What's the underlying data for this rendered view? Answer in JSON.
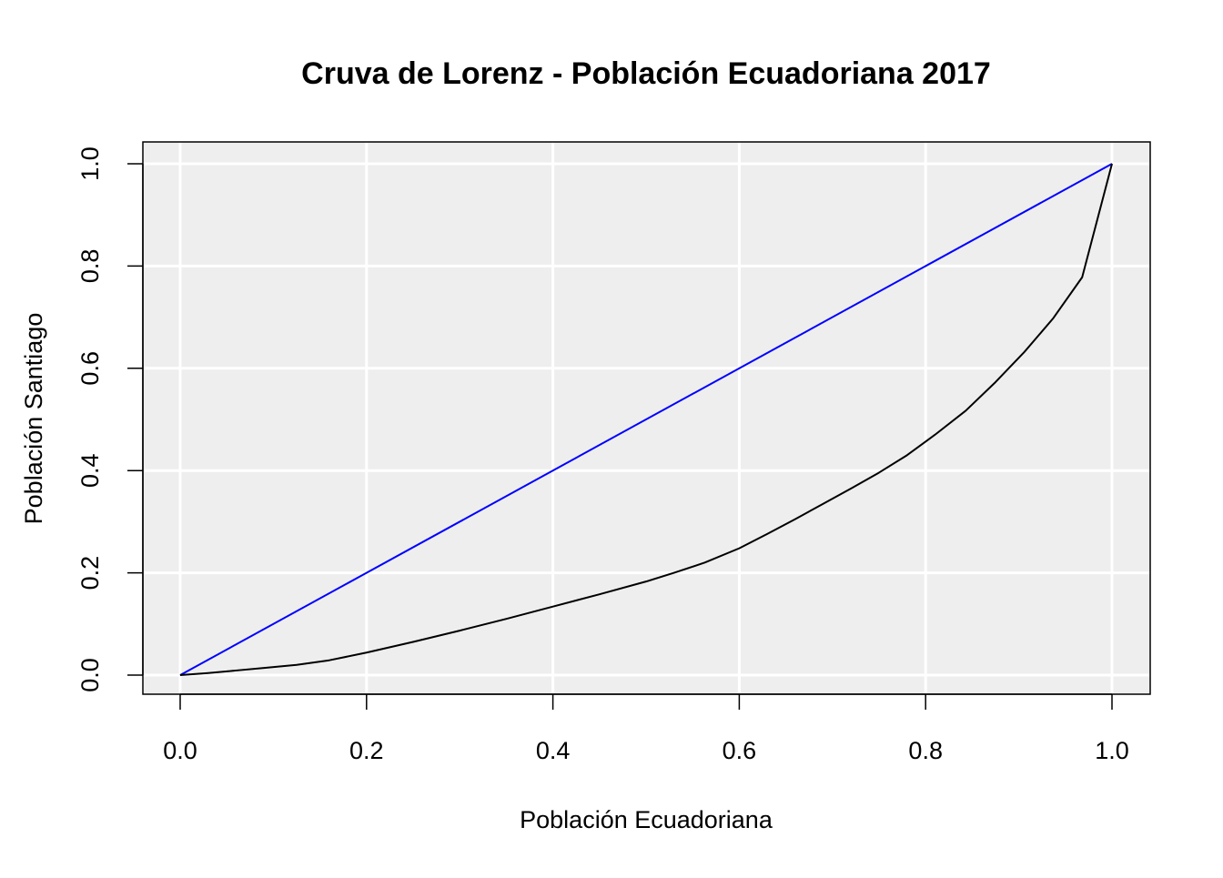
{
  "chart_data": {
    "type": "line",
    "title": "Cruva de Lorenz - Población Ecuadoriana 2017",
    "xlabel": "Población Ecuadoriana",
    "ylabel": "Población Santiago",
    "xlim": [
      0,
      1
    ],
    "ylim": [
      0,
      1
    ],
    "x_ticks": [
      "0.0",
      "0.2",
      "0.4",
      "0.6",
      "0.8",
      "1.0"
    ],
    "y_ticks": [
      "0.0",
      "0.2",
      "0.4",
      "0.6",
      "0.8",
      "1.0"
    ],
    "grid": true,
    "panel_background": "#EEEEEE",
    "grid_color": "#FFFFFF",
    "series": [
      {
        "color": "#0000FF",
        "x": [
          0,
          1
        ],
        "y": [
          0,
          1
        ]
      },
      {
        "color": "#000000",
        "x": [
          0,
          0.03,
          0.06,
          0.09,
          0.125,
          0.16,
          0.2,
          0.25,
          0.3,
          0.35,
          0.4,
          0.45,
          0.5,
          0.53,
          0.563,
          0.6,
          0.63,
          0.66,
          0.69,
          0.72,
          0.75,
          0.78,
          0.81,
          0.843,
          0.875,
          0.906,
          0.937,
          0.968,
          1.0
        ],
        "y": [
          0,
          0.004,
          0.009,
          0.014,
          0.02,
          0.029,
          0.044,
          0.065,
          0.087,
          0.11,
          0.134,
          0.158,
          0.183,
          0.2,
          0.22,
          0.248,
          0.276,
          0.305,
          0.335,
          0.365,
          0.396,
          0.43,
          0.47,
          0.517,
          0.573,
          0.632,
          0.698,
          0.778,
          1.0
        ]
      }
    ]
  }
}
